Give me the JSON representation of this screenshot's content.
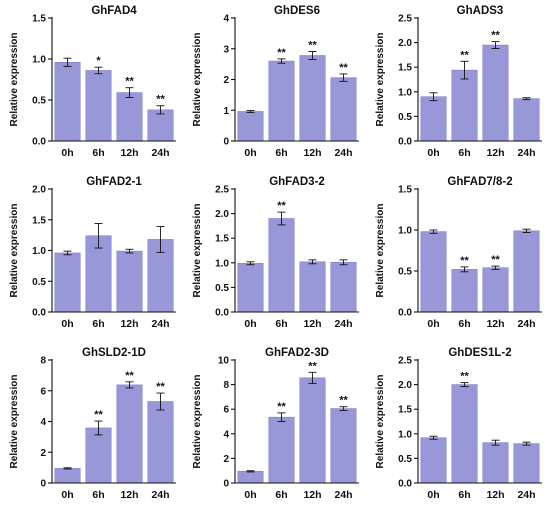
{
  "style": {
    "bar_color": "#9898D9",
    "bar_edge": "#8080C8",
    "axis_color": "#111111"
  },
  "chart_data": [
    {
      "type": "bar",
      "title": "GhFAD4",
      "ylabel": "Relative expression",
      "categories": [
        "0h",
        "6h",
        "12h",
        "24h"
      ],
      "values": [
        0.96,
        0.86,
        0.59,
        0.38
      ],
      "errors": [
        0.05,
        0.04,
        0.06,
        0.05
      ],
      "annotations": [
        "",
        "*",
        "**",
        "**"
      ],
      "ylim": [
        0,
        1.5
      ],
      "yticks": [
        "0.0",
        "0.5",
        "1.0",
        "1.5"
      ]
    },
    {
      "type": "bar",
      "title": "GhDES6",
      "ylabel": "Relative expression",
      "categories": [
        "0h",
        "6h",
        "12h",
        "24h"
      ],
      "values": [
        0.96,
        2.6,
        2.78,
        2.06
      ],
      "errors": [
        0.03,
        0.07,
        0.13,
        0.12
      ],
      "annotations": [
        "",
        "**",
        "**",
        "**"
      ],
      "ylim": [
        0,
        4
      ],
      "yticks": [
        "0",
        "1",
        "2",
        "3",
        "4"
      ]
    },
    {
      "type": "bar",
      "title": "GhADS3",
      "ylabel": "Relative expression",
      "categories": [
        "0h",
        "6h",
        "12h",
        "24h"
      ],
      "values": [
        0.9,
        1.44,
        1.95,
        0.86
      ],
      "errors": [
        0.08,
        0.18,
        0.07,
        0.02
      ],
      "annotations": [
        "",
        "**",
        "**",
        ""
      ],
      "ylim": [
        0,
        2.5
      ],
      "yticks": [
        "0.0",
        "0.5",
        "1.0",
        "1.5",
        "2.0",
        "2.5"
      ]
    },
    {
      "type": "bar",
      "title": "GhFAD2-1",
      "ylabel": "Relative expression",
      "categories": [
        "0h",
        "6h",
        "12h",
        "24h"
      ],
      "values": [
        0.96,
        1.24,
        0.99,
        1.18
      ],
      "errors": [
        0.03,
        0.2,
        0.03,
        0.21
      ],
      "annotations": [
        "",
        "",
        "",
        ""
      ],
      "ylim": [
        0,
        2.0
      ],
      "yticks": [
        "0.0",
        "0.5",
        "1.0",
        "1.5",
        "2.0"
      ]
    },
    {
      "type": "bar",
      "title": "GhFAD3-2",
      "ylabel": "Relative expression",
      "categories": [
        "0h",
        "6h",
        "12h",
        "24h"
      ],
      "values": [
        0.99,
        1.9,
        1.02,
        1.01
      ],
      "errors": [
        0.03,
        0.13,
        0.04,
        0.05
      ],
      "annotations": [
        "",
        "**",
        "",
        ""
      ],
      "ylim": [
        0,
        2.5
      ],
      "yticks": [
        "0.0",
        "0.5",
        "1.0",
        "1.5",
        "2.0",
        "2.5"
      ]
    },
    {
      "type": "bar",
      "title": "GhFAD7/8-2",
      "ylabel": "Relative expression",
      "categories": [
        "0h",
        "6h",
        "12h",
        "24h"
      ],
      "values": [
        0.98,
        0.52,
        0.54,
        0.99
      ],
      "errors": [
        0.02,
        0.03,
        0.02,
        0.02
      ],
      "annotations": [
        "",
        "**",
        "**",
        ""
      ],
      "ylim": [
        0,
        1.5
      ],
      "yticks": [
        "0.0",
        "0.5",
        "1.0",
        "1.5"
      ]
    },
    {
      "type": "bar",
      "title": "GhSLD2-1D",
      "ylabel": "Relative expression",
      "categories": [
        "0h",
        "6h",
        "12h",
        "24h"
      ],
      "values": [
        0.95,
        3.58,
        6.38,
        5.3
      ],
      "errors": [
        0.04,
        0.45,
        0.2,
        0.55
      ],
      "annotations": [
        "",
        "**",
        "**",
        "**"
      ],
      "ylim": [
        0,
        8
      ],
      "yticks": [
        "0",
        "2",
        "4",
        "6",
        "8"
      ]
    },
    {
      "type": "bar",
      "title": "GhFAD2-3D",
      "ylabel": "Relative expression",
      "categories": [
        "0h",
        "6h",
        "12h",
        "24h"
      ],
      "values": [
        0.95,
        5.35,
        8.55,
        6.05
      ],
      "errors": [
        0.05,
        0.35,
        0.45,
        0.15
      ],
      "annotations": [
        "",
        "**",
        "**",
        "**"
      ],
      "ylim": [
        0,
        10
      ],
      "yticks": [
        "0",
        "2",
        "4",
        "6",
        "8",
        "10"
      ]
    },
    {
      "type": "bar",
      "title": "GhDES1L-2",
      "ylabel": "Relative expression",
      "categories": [
        "0h",
        "6h",
        "12h",
        "24h"
      ],
      "values": [
        0.92,
        2.0,
        0.82,
        0.8
      ],
      "errors": [
        0.03,
        0.04,
        0.05,
        0.03
      ],
      "annotations": [
        "",
        "**",
        "",
        ""
      ],
      "ylim": [
        0,
        2.5
      ],
      "yticks": [
        "0.0",
        "0.5",
        "1.0",
        "1.5",
        "2.0",
        "2.5"
      ]
    }
  ]
}
